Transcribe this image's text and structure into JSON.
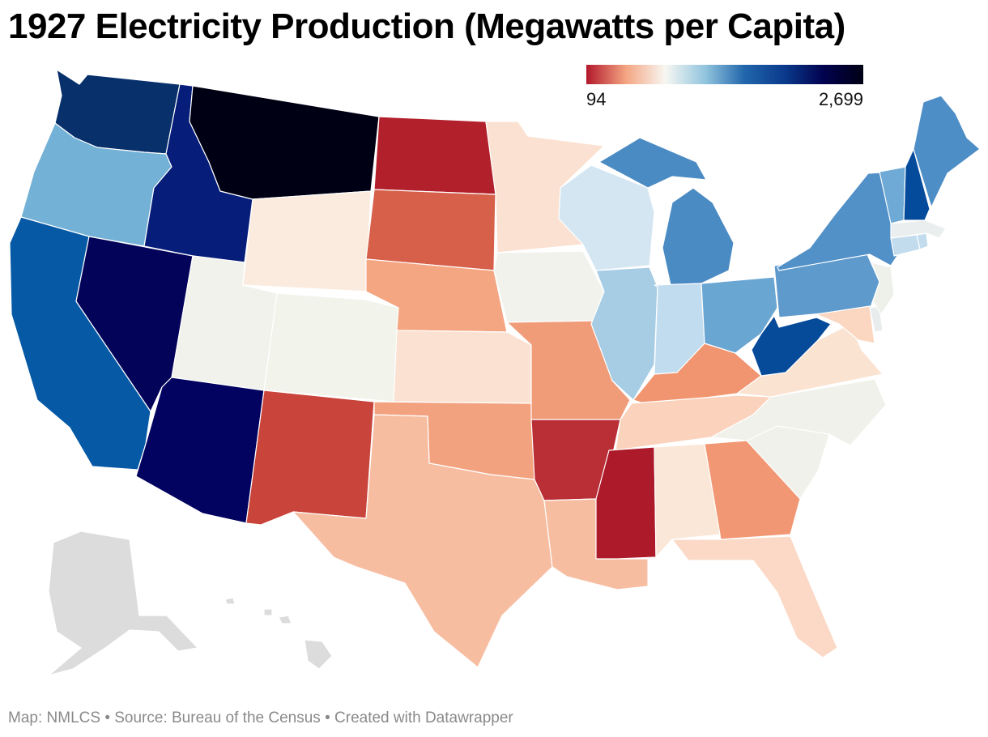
{
  "title": "1927 Electricity Production (Megawatts per Capita)",
  "legend": {
    "min_label": "94",
    "max_label": "2,699",
    "stops": [
      "#b2182b",
      "#f4a582",
      "#f7f7f2",
      "#92c5de",
      "#2166ac",
      "#0a3a8c",
      "#02024f",
      "#000014"
    ]
  },
  "footer": {
    "map_credit": "Map: NMLCS",
    "source": "Source: Bureau of the Census",
    "created": "Created with Datawrapper",
    "separator": "•"
  },
  "states": [
    {
      "id": "WA",
      "color": "#08306b"
    },
    {
      "id": "OR",
      "color": "#73b1d6"
    },
    {
      "id": "CA",
      "color": "#0559a5"
    },
    {
      "id": "ID",
      "color": "#061d79"
    },
    {
      "id": "NV",
      "color": "#03035a"
    },
    {
      "id": "MT",
      "color": "#000014"
    },
    {
      "id": "WY",
      "color": "#fbebde"
    },
    {
      "id": "UT",
      "color": "#f1f2ec"
    },
    {
      "id": "AZ",
      "color": "#020260"
    },
    {
      "id": "CO",
      "color": "#f2f3eb"
    },
    {
      "id": "NM",
      "color": "#c9443a"
    },
    {
      "id": "ND",
      "color": "#b2202b"
    },
    {
      "id": "SD",
      "color": "#d6604a"
    },
    {
      "id": "NE",
      "color": "#f4a582"
    },
    {
      "id": "KS",
      "color": "#fbe1d1"
    },
    {
      "id": "OK",
      "color": "#f3a27f"
    },
    {
      "id": "TX",
      "color": "#f7bda1"
    },
    {
      "id": "MN",
      "color": "#fbe1d1"
    },
    {
      "id": "IA",
      "color": "#f1f2ec"
    },
    {
      "id": "MO",
      "color": "#f09c79"
    },
    {
      "id": "AR",
      "color": "#ba2e35"
    },
    {
      "id": "LA",
      "color": "#f7bda1"
    },
    {
      "id": "WI",
      "color": "#d4e6f1"
    },
    {
      "id": "IL",
      "color": "#a7cde5"
    },
    {
      "id": "MI",
      "color": "#4b8bc3"
    },
    {
      "id": "IN",
      "color": "#c0dcee"
    },
    {
      "id": "OH",
      "color": "#6aa6d2"
    },
    {
      "id": "KY",
      "color": "#f0956f"
    },
    {
      "id": "TN",
      "color": "#fbd2bc"
    },
    {
      "id": "MS",
      "color": "#ad1a2a"
    },
    {
      "id": "AL",
      "color": "#fbe7d8"
    },
    {
      "id": "GA",
      "color": "#f29774"
    },
    {
      "id": "FL",
      "color": "#fbd9c6"
    },
    {
      "id": "SC",
      "color": "#eff1ea"
    },
    {
      "id": "NC",
      "color": "#eff1ea"
    },
    {
      "id": "VA",
      "color": "#fbe3d2"
    },
    {
      "id": "WV",
      "color": "#064a9a"
    },
    {
      "id": "MD",
      "color": "#fbd6c0"
    },
    {
      "id": "DE",
      "color": "#e8ecec"
    },
    {
      "id": "NJ",
      "color": "#eef0ea"
    },
    {
      "id": "PA",
      "color": "#5e9acc"
    },
    {
      "id": "NY",
      "color": "#5290c8"
    },
    {
      "id": "CT",
      "color": "#c2dcee"
    },
    {
      "id": "RI",
      "color": "#c2dcee"
    },
    {
      "id": "MA",
      "color": "#eaeeee"
    },
    {
      "id": "VT",
      "color": "#6eaad5"
    },
    {
      "id": "NH",
      "color": "#044b9c"
    },
    {
      "id": "ME",
      "color": "#4e8ec6"
    },
    {
      "id": "AK",
      "color": "#dcdcdc"
    },
    {
      "id": "HI",
      "color": "#dcdcdc"
    }
  ]
}
